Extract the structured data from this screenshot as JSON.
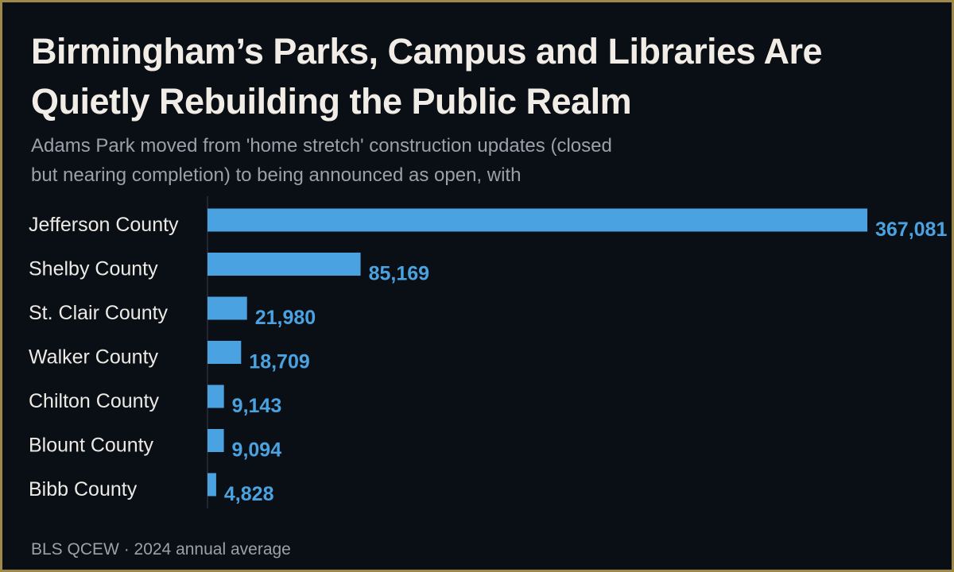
{
  "header": {
    "title": "Birmingham’s Parks, Campus and Libraries Are Quietly Rebuilding the Public Realm",
    "subtitle": "Adams Park moved from 'home stretch' construction updates (closed but nearing completion) to being announced as open, with"
  },
  "footer": {
    "source": "BLS QCEW · 2024 annual average"
  },
  "colors": {
    "background": "#0a0e15",
    "border": "#a08a4a",
    "bar": "#4aa3e0",
    "value_label": "#4aa3e0",
    "category_label": "#eceae5",
    "axis": "#3a3f48"
  },
  "chart_data": {
    "type": "bar",
    "orientation": "horizontal",
    "categories": [
      "Jefferson County",
      "Shelby County",
      "St. Clair County",
      "Walker County",
      "Chilton County",
      "Blount County",
      "Bibb County"
    ],
    "values": [
      367081,
      85169,
      21980,
      18709,
      9143,
      9094,
      4828
    ],
    "value_labels": [
      "367,081",
      "85,169",
      "21,980",
      "18,709",
      "9,143",
      "9,094",
      "4,828"
    ],
    "xlim": [
      0,
      367081
    ],
    "grid": false,
    "legend": "none"
  }
}
